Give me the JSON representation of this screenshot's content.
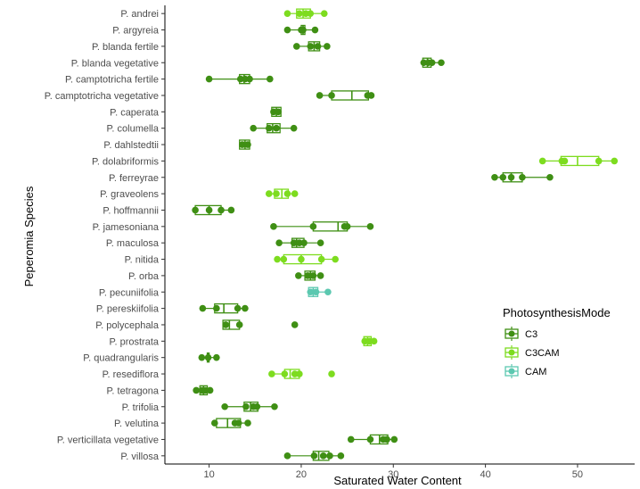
{
  "chart_data": {
    "type": "boxplot",
    "xlabel": "Saturated Water Content",
    "ylabel": "Peperomia Species",
    "xlim": [
      5.2,
      56.2
    ],
    "xticks": [
      10,
      20,
      30,
      40,
      50
    ],
    "grid": false,
    "legend": {
      "title": "PhotosynthesisMode",
      "position": "right",
      "entries": [
        {
          "name": "C3",
          "color": "#3f8f14"
        },
        {
          "name": "C3CAM",
          "color": "#7ddc1f"
        },
        {
          "name": "CAM",
          "color": "#5cc8b0"
        }
      ]
    },
    "species": [
      {
        "name": "P. andrei",
        "mode": "C3CAM",
        "box": [
          19.5,
          20.2,
          21.0
        ],
        "whisker": [
          18.5,
          22.5
        ],
        "points": [
          18.5,
          19.8,
          20.5,
          21.0,
          22.5
        ]
      },
      {
        "name": "P. argyreia",
        "mode": "C3",
        "box": [
          20.0,
          20.2,
          20.4
        ],
        "whisker": [
          18.5,
          21.5
        ],
        "points": [
          18.5,
          20.0,
          20.2,
          21.5
        ]
      },
      {
        "name": "P. blanda fertile",
        "mode": "C3",
        "box": [
          20.8,
          21.4,
          22.0
        ],
        "whisker": [
          19.5,
          22.8
        ],
        "points": [
          19.5,
          21.0,
          21.8,
          22.8
        ]
      },
      {
        "name": "P. blanda vegetative",
        "mode": "C3",
        "box": [
          33.2,
          33.7,
          34.1
        ],
        "whisker": [
          33.0,
          35.2
        ],
        "points": [
          33.3,
          33.8,
          34.2,
          35.2
        ]
      },
      {
        "name": "P. camptotricha fertile",
        "mode": "C3",
        "box": [
          13.3,
          13.8,
          14.4
        ],
        "whisker": [
          10.0,
          16.6
        ],
        "points": [
          10.0,
          13.4,
          13.9,
          14.4,
          16.6
        ]
      },
      {
        "name": "P. camptotricha vegetative",
        "mode": "C3",
        "box": [
          23.3,
          25.5,
          27.3
        ],
        "whisker": [
          22.0,
          27.6
        ],
        "points": [
          22.0,
          23.3,
          27.2,
          27.6
        ]
      },
      {
        "name": "P. caperata",
        "mode": "C3",
        "box": [
          16.8,
          17.3,
          17.8
        ],
        "whisker": [
          16.8,
          17.8
        ],
        "points": [
          17.0,
          17.5
        ]
      },
      {
        "name": "P. columella",
        "mode": "C3",
        "box": [
          16.3,
          16.9,
          17.7
        ],
        "whisker": [
          14.8,
          19.2
        ],
        "points": [
          14.8,
          16.5,
          17.3,
          19.2
        ]
      },
      {
        "name": "P. dahlstedtii",
        "mode": "C3",
        "box": [
          13.3,
          13.9,
          14.4
        ],
        "whisker": [
          13.3,
          14.4
        ],
        "points": [
          13.6,
          14.2
        ]
      },
      {
        "name": "P. dolabriformis",
        "mode": "C3CAM",
        "box": [
          48.2,
          50.0,
          52.3
        ],
        "whisker": [
          46.2,
          54.0
        ],
        "points": [
          46.2,
          48.3,
          48.6,
          52.3,
          54.0
        ]
      },
      {
        "name": "P. ferreyrae",
        "mode": "C3",
        "box": [
          41.9,
          42.8,
          44.0
        ],
        "whisker": [
          41.0,
          47.0
        ],
        "points": [
          41.0,
          41.9,
          42.8,
          44.0,
          47.0
        ]
      },
      {
        "name": "P. graveolens",
        "mode": "C3CAM",
        "box": [
          17.1,
          17.9,
          18.6
        ],
        "whisker": [
          16.5,
          19.3
        ],
        "points": [
          16.5,
          17.3,
          18.5,
          19.3
        ]
      },
      {
        "name": "P. hoffmannii",
        "mode": "C3",
        "box": [
          8.5,
          10.0,
          11.3
        ],
        "whisker": [
          8.5,
          12.4
        ],
        "points": [
          8.5,
          10.0,
          11.3,
          12.4
        ]
      },
      {
        "name": "P. jamesoniana",
        "mode": "C3",
        "box": [
          21.3,
          24.0,
          25.0
        ],
        "whisker": [
          17.0,
          27.5
        ],
        "points": [
          17.0,
          21.3,
          24.7,
          25.0,
          27.5
        ]
      },
      {
        "name": "P. maculosa",
        "mode": "C3",
        "box": [
          19.0,
          19.5,
          20.3
        ],
        "whisker": [
          17.6,
          22.1
        ],
        "points": [
          17.6,
          19.2,
          19.8,
          20.3,
          22.1
        ]
      },
      {
        "name": "P. nitida",
        "mode": "C3CAM",
        "box": [
          18.1,
          20.0,
          22.2
        ],
        "whisker": [
          17.4,
          23.7
        ],
        "points": [
          17.4,
          18.1,
          20.0,
          22.2,
          23.7
        ]
      },
      {
        "name": "P. orba",
        "mode": "C3",
        "box": [
          20.4,
          21.0,
          21.5
        ],
        "whisker": [
          19.7,
          22.1
        ],
        "points": [
          19.7,
          20.7,
          21.3,
          22.1
        ]
      },
      {
        "name": "P. pecuniifolia",
        "mode": "CAM",
        "box": [
          20.8,
          21.3,
          21.8
        ],
        "whisker": [
          20.8,
          22.9
        ],
        "points": [
          21.0,
          21.6,
          22.9
        ]
      },
      {
        "name": "P. pereskiifolia",
        "mode": "C3",
        "box": [
          10.6,
          11.6,
          13.1
        ],
        "whisker": [
          9.3,
          13.9
        ],
        "points": [
          9.3,
          10.8,
          13.1,
          13.9
        ]
      },
      {
        "name": "P. polycephala",
        "mode": "C3",
        "box": [
          11.5,
          12.2,
          13.3
        ],
        "whisker": [
          11.5,
          13.3
        ],
        "points": [
          11.8,
          13.3,
          19.3
        ]
      },
      {
        "name": "P. prostrata",
        "mode": "C3CAM",
        "box": [
          26.8,
          27.2,
          27.6
        ],
        "whisker": [
          26.8,
          27.9
        ],
        "points": [
          26.9,
          27.4,
          27.9
        ]
      },
      {
        "name": "P. quadrangularis",
        "mode": "C3",
        "box": [
          9.8,
          9.9,
          10.0
        ],
        "whisker": [
          9.2,
          10.8
        ],
        "points": [
          9.2,
          9.9,
          10.8
        ]
      },
      {
        "name": "P. resediflora",
        "mode": "C3CAM",
        "box": [
          18.2,
          18.8,
          19.8
        ],
        "whisker": [
          16.8,
          19.8
        ],
        "points": [
          16.8,
          18.2,
          19.3,
          19.8,
          23.3
        ]
      },
      {
        "name": "P. tetragona",
        "mode": "C3",
        "box": [
          9.0,
          9.4,
          9.8
        ],
        "whisker": [
          8.6,
          10.1
        ],
        "points": [
          8.6,
          9.2,
          9.6,
          10.1
        ]
      },
      {
        "name": "P. trifolia",
        "mode": "C3",
        "box": [
          13.8,
          14.5,
          15.3
        ],
        "whisker": [
          11.7,
          17.1
        ],
        "points": [
          11.7,
          14.0,
          14.8,
          15.2,
          17.1
        ]
      },
      {
        "name": "P. velutina",
        "mode": "C3",
        "box": [
          10.8,
          12.0,
          13.4
        ],
        "whisker": [
          10.6,
          14.2
        ],
        "points": [
          10.6,
          12.8,
          13.2,
          14.2
        ]
      },
      {
        "name": "P. verticillata vegetative",
        "mode": "C3",
        "box": [
          27.5,
          28.5,
          29.4
        ],
        "whisker": [
          25.4,
          30.1
        ],
        "points": [
          25.4,
          27.5,
          28.9,
          29.3,
          30.1
        ]
      },
      {
        "name": "P. villosa",
        "mode": "C3",
        "box": [
          21.3,
          21.9,
          23.0
        ],
        "whisker": [
          18.5,
          24.3
        ],
        "points": [
          18.5,
          21.4,
          22.4,
          23.1,
          24.3
        ]
      }
    ]
  }
}
